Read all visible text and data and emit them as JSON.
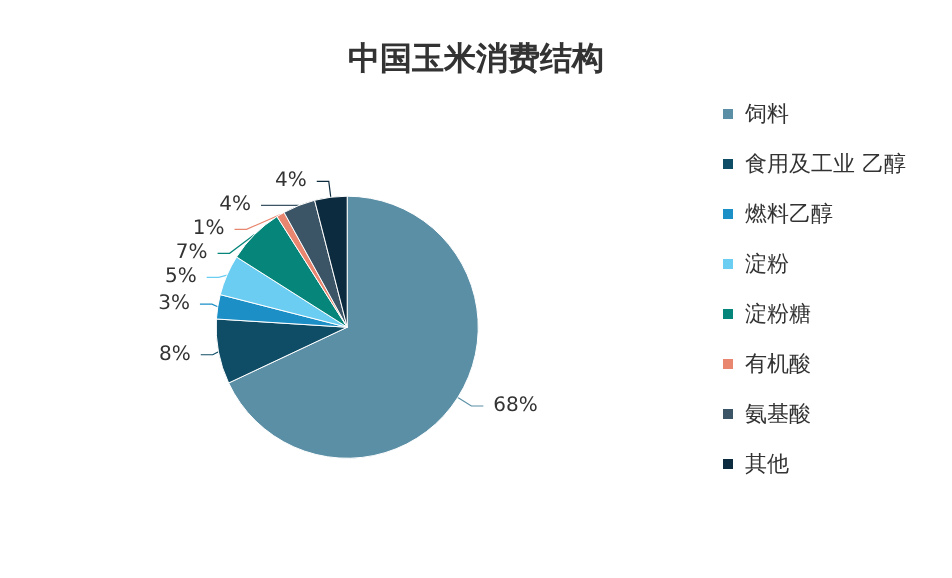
{
  "chart_data": {
    "type": "pie",
    "title": "中国玉米消费结构",
    "categories": [
      "饲料",
      "食用及工业 乙醇",
      "燃料乙醇",
      "淀粉",
      "淀粉糖",
      "有机酸",
      "氨基酸",
      "其他"
    ],
    "values": [
      68,
      8,
      3,
      5,
      7,
      1,
      4,
      4
    ],
    "value_labels": [
      "68%",
      "8%",
      "3%",
      "5%",
      "7%",
      "1%",
      "4%",
      "4%"
    ],
    "colors": [
      "#5b8fa6",
      "#0f4d66",
      "#1b8fc6",
      "#6ccdf2",
      "#06867a",
      "#e8866f",
      "#3b5566",
      "#0d2b3e"
    ],
    "legend": "right"
  }
}
